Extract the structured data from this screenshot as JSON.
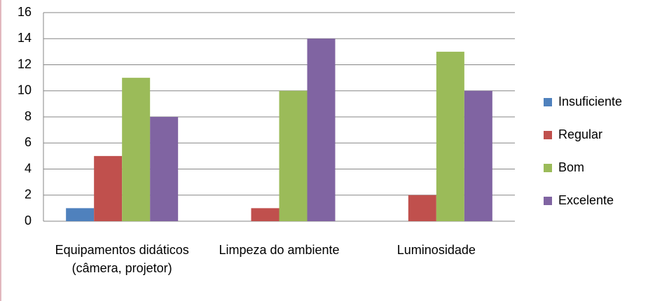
{
  "chart_data": {
    "type": "bar",
    "categories": [
      "Equipamentos didáticos (câmera, projetor)",
      "Limpeza do ambiente",
      "Luminosidade"
    ],
    "series": [
      {
        "name": "Insuficiente",
        "color": "#4f81bd",
        "values": [
          1,
          0,
          0
        ]
      },
      {
        "name": "Regular",
        "color": "#c0504d",
        "values": [
          5,
          1,
          2
        ]
      },
      {
        "name": "Bom",
        "color": "#9bbb59",
        "values": [
          11,
          10,
          13
        ]
      },
      {
        "name": "Excelente",
        "color": "#8064a2",
        "values": [
          8,
          14,
          10
        ]
      }
    ],
    "ylim": [
      0,
      16
    ],
    "yticks": [
      0,
      2,
      4,
      6,
      8,
      10,
      12,
      14,
      16
    ],
    "grid": true,
    "legend": "right"
  }
}
